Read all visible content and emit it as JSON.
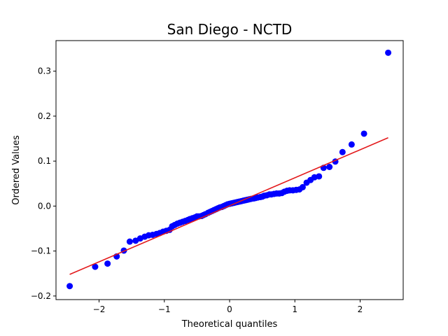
{
  "chart_data": {
    "type": "scatter",
    "title": "San Diego - NCTD",
    "xlabel": "Theoretical quantiles",
    "ylabel": "Ordered Values",
    "xlim": [
      -2.66,
      2.66
    ],
    "ylim": [
      -0.208,
      0.368
    ],
    "xticks": [
      -2,
      -1,
      0,
      1,
      2
    ],
    "yticks": [
      -0.2,
      -0.1,
      0.0,
      0.1,
      0.2,
      0.3
    ],
    "xtick_labels": [
      "−2",
      "−1",
      "0",
      "1",
      "2"
    ],
    "ytick_labels": [
      "−0.2",
      "−0.1",
      "0.0",
      "0.1",
      "0.2",
      "0.3"
    ],
    "grid": false,
    "point_color": "#0000ff",
    "line_color": "#e31a1c",
    "fit_line": {
      "x": [
        -2.45,
        2.43
      ],
      "y": [
        -0.152,
        0.152
      ]
    },
    "series": [
      {
        "x": [
          -2.45,
          -2.06,
          -1.87,
          -1.73,
          -1.62,
          -1.53,
          -1.44,
          -1.37,
          -1.3,
          -1.24,
          -1.18,
          -1.12,
          -1.07,
          -1.02,
          -0.97,
          -0.92,
          -0.88,
          -0.84,
          -0.8,
          -0.76,
          -0.72,
          -0.68,
          -0.64,
          -0.61,
          -0.57,
          -0.53,
          -0.5,
          -0.47,
          -0.43,
          -0.4,
          -0.37,
          -0.33,
          -0.3,
          -0.27,
          -0.24,
          -0.21,
          -0.18,
          -0.15,
          -0.12,
          -0.09,
          -0.06,
          -0.03,
          0.0,
          0.03,
          0.06,
          0.09,
          0.12,
          0.15,
          0.18,
          0.21,
          0.24,
          0.27,
          0.3,
          0.33,
          0.37,
          0.4,
          0.43,
          0.47,
          0.5,
          0.53,
          0.57,
          0.61,
          0.64,
          0.68,
          0.72,
          0.76,
          0.8,
          0.84,
          0.88,
          0.92,
          0.97,
          1.02,
          1.07,
          1.12,
          1.18,
          1.24,
          1.3,
          1.37,
          1.44,
          1.53,
          1.62,
          1.73,
          1.87,
          2.06,
          2.43
        ],
        "y": [
          -0.178,
          -0.135,
          -0.128,
          -0.112,
          -0.099,
          -0.079,
          -0.077,
          -0.072,
          -0.068,
          -0.065,
          -0.064,
          -0.062,
          -0.06,
          -0.057,
          -0.055,
          -0.053,
          -0.045,
          -0.042,
          -0.039,
          -0.037,
          -0.035,
          -0.033,
          -0.031,
          -0.029,
          -0.027,
          -0.025,
          -0.023,
          -0.023,
          -0.022,
          -0.02,
          -0.018,
          -0.015,
          -0.013,
          -0.011,
          -0.009,
          -0.007,
          -0.005,
          -0.003,
          -0.002,
          0.0,
          0.002,
          0.004,
          0.005,
          0.006,
          0.007,
          0.008,
          0.009,
          0.01,
          0.011,
          0.012,
          0.013,
          0.014,
          0.015,
          0.016,
          0.017,
          0.018,
          0.019,
          0.02,
          0.021,
          0.023,
          0.024,
          0.026,
          0.026,
          0.027,
          0.028,
          0.028,
          0.029,
          0.032,
          0.034,
          0.035,
          0.035,
          0.036,
          0.037,
          0.042,
          0.052,
          0.058,
          0.064,
          0.066,
          0.085,
          0.087,
          0.099,
          0.12,
          0.137,
          0.161,
          0.341
        ]
      }
    ]
  }
}
